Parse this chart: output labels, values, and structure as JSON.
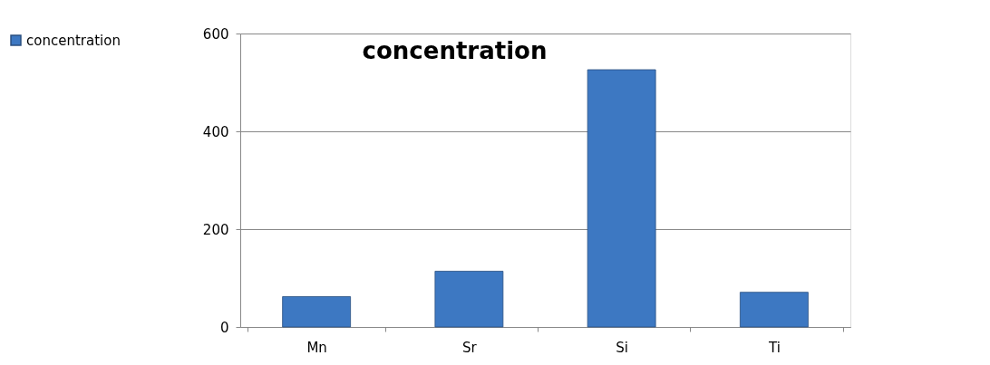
{
  "chart_data": {
    "type": "bar",
    "title": "concentration",
    "categories": [
      "Mn",
      "Sr",
      "Si",
      "Ti"
    ],
    "series": [
      {
        "name": "concentration",
        "color": "#3d78c2",
        "values": [
          62,
          114,
          526,
          71
        ]
      }
    ],
    "ylim": [
      0,
      600
    ],
    "yticks": [
      0,
      200,
      400,
      600
    ],
    "grid": "y",
    "legend": "left"
  }
}
